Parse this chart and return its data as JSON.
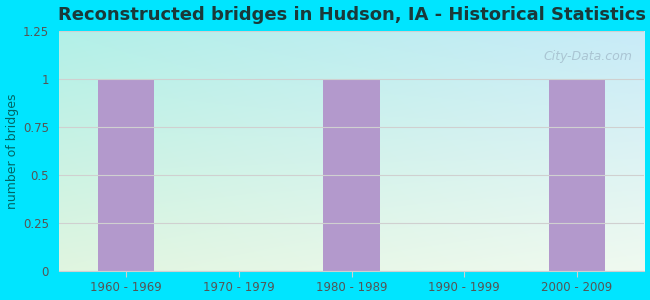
{
  "title": "Reconstructed bridges in Hudson, IA - Historical Statistics",
  "categories": [
    "1960 - 1969",
    "1970 - 1979",
    "1980 - 1989",
    "1990 - 1999",
    "2000 - 2009"
  ],
  "values": [
    1,
    0,
    1,
    0,
    1
  ],
  "bar_color": "#b399cc",
  "ylim": [
    0,
    1.25
  ],
  "yticks": [
    0,
    0.25,
    0.5,
    0.75,
    1,
    1.25
  ],
  "ylabel": "number of bridges",
  "background_outer": "#00e5ff",
  "bg_top_left": "#b2f0e8",
  "bg_top_right": "#d0eef8",
  "bg_bottom_left": "#e0f5e0",
  "bg_bottom_right": "#f0f8f0",
  "grid_color": "#d0d0d0",
  "title_fontsize": 13,
  "title_color": "#1a3a3a",
  "axis_label_color": "#006666",
  "tick_label_color": "#555555",
  "watermark": "City-Data.com",
  "bar_width": 0.5
}
